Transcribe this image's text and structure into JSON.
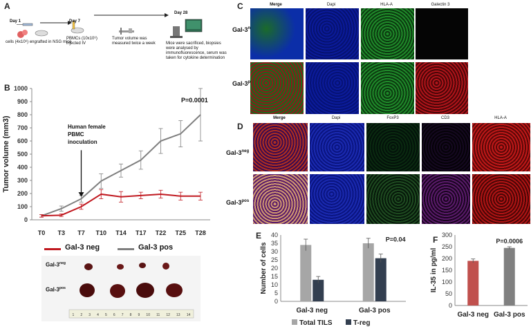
{
  "panelA": {
    "letter": "A",
    "day1": "Day 1",
    "day7": "Day 7",
    "day28": "Day 28",
    "caption1": "cells (4x10⁶) engrafted in NSG mice",
    "caption2": "PBMCs (10x10⁶) injected IV",
    "caption3": "Tumor volume was measured twice a week",
    "caption4": "Mice were sacrificed, biopsies were analysed by immunofluorescence, serum was taken for cytokine determination"
  },
  "panelB": {
    "letter": "B",
    "annotation": "Human female PBMC inoculation",
    "pvalue": "P=0.0001",
    "legend_neg": "Gal-3 neg",
    "legend_pos": "Gal-3 pos",
    "tumor_neg": "Gal-3",
    "tumor_neg_sup": "neg",
    "tumor_pos": "Gal-3",
    "tumor_pos_sup": "pos",
    "ruler_ticks": [
      "1",
      "2",
      "3",
      "4",
      "5",
      "6",
      "7",
      "8",
      "9",
      "10",
      "11",
      "12",
      "13",
      "14"
    ]
  },
  "panelC": {
    "letter": "C",
    "cols": [
      "Merge",
      "Dapi",
      "HLA-A",
      "Galectin 3"
    ],
    "row1": "Gal-3",
    "row1_sup": "neg",
    "row2": "Gal-3",
    "row2_sup": "pos"
  },
  "panelD": {
    "letter": "D",
    "cols": [
      "Merge",
      "Dapi",
      "FoxP3",
      "CD3",
      "HLA-A"
    ],
    "row1": "Gal-3",
    "row1_sup": "neg",
    "row2": "Gal-3",
    "row2_sup": "pos"
  },
  "panelE": {
    "letter": "E"
  },
  "panelF": {
    "letter": "F"
  },
  "colors": {
    "neg_line": "#c0181f",
    "pos_line": "#7f7f7f",
    "bar_light": "#a6a6a6",
    "bar_dark": "#333f50",
    "bar_red": "#c0504d",
    "bar_gray": "#808080"
  },
  "chart_data": [
    {
      "id": "B",
      "type": "line",
      "categories": [
        "T0",
        "T3",
        "T7",
        "T10",
        "T14",
        "T17",
        "T22",
        "T25",
        "T28"
      ],
      "ylabel": "Tumor volume (mm3)",
      "xlabel": "",
      "ylim": [
        0,
        1000
      ],
      "yticks": [
        0,
        100,
        200,
        300,
        400,
        500,
        600,
        700,
        800,
        900,
        1000
      ],
      "series": [
        {
          "name": "Gal-3 neg",
          "values": [
            30,
            35,
            100,
            195,
            175,
            185,
            195,
            180,
            180
          ],
          "errors": [
            10,
            10,
            20,
            35,
            40,
            25,
            30,
            30,
            30
          ]
        },
        {
          "name": "Gal-3 pos",
          "values": [
            30,
            85,
            160,
            295,
            375,
            455,
            600,
            655,
            800
          ],
          "errors": [
            10,
            20,
            25,
            55,
            50,
            70,
            95,
            100,
            200
          ]
        }
      ],
      "legend": "bottom",
      "grid": false
    },
    {
      "id": "E",
      "type": "bar",
      "categories": [
        "Gal-3 neg",
        "Gal-3 pos"
      ],
      "ylabel": "Number of cells",
      "ylim": [
        0,
        40
      ],
      "yticks": [
        0,
        5,
        10,
        15,
        20,
        25,
        30,
        35,
        40
      ],
      "series": [
        {
          "name": "Total TILS",
          "values": [
            34,
            35
          ],
          "errors": [
            3.5,
            3
          ]
        },
        {
          "name": "T-reg",
          "values": [
            13,
            26
          ],
          "errors": [
            2,
            2.5
          ]
        }
      ],
      "annotation": "P=0.04",
      "legend": "bottom",
      "grid": false
    },
    {
      "id": "F",
      "type": "bar",
      "categories": [
        "Gal-3 neg",
        "Gal-3 pos"
      ],
      "ylabel": "IL-35 in pg/ml",
      "ylim": [
        0,
        300
      ],
      "yticks": [
        0,
        50,
        100,
        150,
        200,
        250,
        300
      ],
      "series": [
        {
          "values": [
            190,
            245
          ],
          "errors": [
            8,
            5
          ]
        }
      ],
      "annotation": "P=0.0006",
      "grid": false
    }
  ]
}
